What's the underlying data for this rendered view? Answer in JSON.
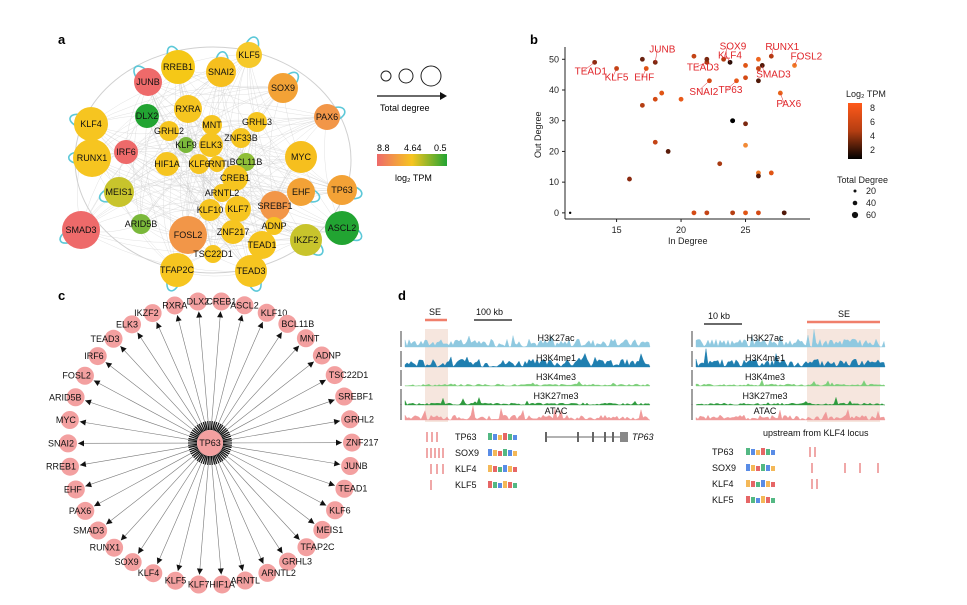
{
  "panels": {
    "a": "a",
    "b": "b",
    "c": "c",
    "d": "d"
  },
  "panel_a": {
    "legend_size_label": "Total degree",
    "legend_color_ticks": [
      "8.8",
      "4.64",
      "0.5"
    ],
    "legend_color_title": "log₂ TPM",
    "colors": {
      "high": "#ee6a6a",
      "mid": "#f6c520",
      "low": "#22a432"
    },
    "nodes": [
      {
        "name": "RREB1",
        "color": "#f5c817"
      },
      {
        "name": "SNAI2",
        "color": "#f6bf1e"
      },
      {
        "name": "KLF5",
        "color": "#f6c92a"
      },
      {
        "name": "JUNB",
        "color": "#ee6a6a"
      },
      {
        "name": "SOX9",
        "color": "#f3a236"
      },
      {
        "name": "DLX2",
        "color": "#22a432"
      },
      {
        "name": "GRHL3",
        "color": "#f6c520"
      },
      {
        "name": "MNT",
        "color": "#f6c520"
      },
      {
        "name": "RXRA",
        "color": "#f6c520"
      },
      {
        "name": "ZNF33B",
        "color": "#f6c520"
      },
      {
        "name": "PAX6",
        "color": "#f29648"
      },
      {
        "name": "KLF4",
        "color": "#f6c520"
      },
      {
        "name": "GRHL2",
        "color": "#f6c520"
      },
      {
        "name": "ELK3",
        "color": "#f6c520"
      },
      {
        "name": "BCL11B",
        "color": "#8fbf38"
      },
      {
        "name": "MYC",
        "color": "#f6bf1e"
      },
      {
        "name": "KLF9",
        "color": "#7ab83a"
      },
      {
        "name": "ARNTL",
        "color": "#f6c520"
      },
      {
        "name": "RUNX1",
        "color": "#f6c520"
      },
      {
        "name": "IRF6",
        "color": "#ee6a6a"
      },
      {
        "name": "CREB1",
        "color": "#f6c520"
      },
      {
        "name": "EHF",
        "color": "#f3a236"
      },
      {
        "name": "TP63",
        "color": "#f3a236"
      },
      {
        "name": "HIF1A",
        "color": "#f6c520"
      },
      {
        "name": "KLF6",
        "color": "#f6c520"
      },
      {
        "name": "ARNTL2",
        "color": "#f6c520"
      },
      {
        "name": "MEIS1",
        "color": "#c8c42c"
      },
      {
        "name": "KLF10",
        "color": "#f6c520"
      },
      {
        "name": "KLF7",
        "color": "#f6c520"
      },
      {
        "name": "SREBF1",
        "color": "#f29648"
      },
      {
        "name": "SMAD3",
        "color": "#ee6a6a"
      },
      {
        "name": "ARID5B",
        "color": "#7ab83a"
      },
      {
        "name": "FOSL2",
        "color": "#f29648"
      },
      {
        "name": "ZNF217",
        "color": "#f6c520"
      },
      {
        "name": "ADNP",
        "color": "#f6c520"
      },
      {
        "name": "ASCL2",
        "color": "#22a432"
      },
      {
        "name": "IKZF2",
        "color": "#c8c42c"
      },
      {
        "name": "TEAD1",
        "color": "#f6c520"
      },
      {
        "name": "TSC22D1",
        "color": "#f6c520"
      },
      {
        "name": "TFAP2C",
        "color": "#f6c520"
      },
      {
        "name": "TEAD3",
        "color": "#f6c520"
      }
    ]
  },
  "chart_data": {
    "type": "scatter",
    "xlabel": "In Degree",
    "ylabel": "Out Degree",
    "xticks": [
      15,
      20,
      25
    ],
    "yticks": [
      0,
      10,
      20,
      30,
      40,
      50
    ],
    "xlim": [
      11,
      30
    ],
    "ylim": [
      -2,
      54
    ],
    "color_legend_title": "Log₂ TPM",
    "color_legend_ticks": [
      8,
      6,
      4,
      2
    ],
    "size_legend_title": "Total Degree",
    "size_legend_ticks": [
      20,
      40,
      60
    ],
    "points": [
      {
        "x": 13.3,
        "y": 49,
        "c": "#8a2a10",
        "label": "TEAD1"
      },
      {
        "x": 15.0,
        "y": 47,
        "c": "#c44416",
        "label": "KLF5"
      },
      {
        "x": 18.0,
        "y": 49,
        "c": "#7c2810",
        "label": "JUNB"
      },
      {
        "x": 17.3,
        "y": 47,
        "c": "#e05515",
        "label": "EHF"
      },
      {
        "x": 22.0,
        "y": 49,
        "c": "#a83a12",
        "label": "TEAD3"
      },
      {
        "x": 22.2,
        "y": 43,
        "c": "#d44a14",
        "label": "SNAI2"
      },
      {
        "x": 23.3,
        "y": 50,
        "c": "#b43e12",
        "label": "SOX9"
      },
      {
        "x": 23.8,
        "y": 49,
        "c": "#2a0c06",
        "label": "KLF4"
      },
      {
        "x": 24.3,
        "y": 43,
        "c": "#e85a1a",
        "label": "TP63"
      },
      {
        "x": 26.3,
        "y": 48,
        "c": "#501808",
        "label": "SMAD3"
      },
      {
        "x": 27.0,
        "y": 51,
        "c": "#b23c12",
        "label": "RUNX1"
      },
      {
        "x": 28.8,
        "y": 48,
        "c": "#f07a26",
        "label": "FOSL2"
      },
      {
        "x": 27.7,
        "y": 39,
        "c": "#e8631a",
        "label": "PAX6"
      },
      {
        "x": 17.0,
        "y": 50,
        "c": "#6a2210",
        "label": ""
      },
      {
        "x": 18.0,
        "y": 37,
        "c": "#d44a14",
        "label": ""
      },
      {
        "x": 21.0,
        "y": 51,
        "c": "#c44416",
        "label": ""
      },
      {
        "x": 22.0,
        "y": 50,
        "c": "#7c2810",
        "label": ""
      },
      {
        "x": 25.0,
        "y": 48,
        "c": "#e05515",
        "label": ""
      },
      {
        "x": 26.0,
        "y": 50,
        "c": "#ee6620",
        "label": ""
      },
      {
        "x": 26.0,
        "y": 47,
        "c": "#c44416",
        "label": ""
      },
      {
        "x": 26.0,
        "y": 43,
        "c": "#501808",
        "label": ""
      },
      {
        "x": 25.0,
        "y": 44,
        "c": "#d44a14",
        "label": ""
      },
      {
        "x": 17.0,
        "y": 35,
        "c": "#b43e12",
        "label": ""
      },
      {
        "x": 18.5,
        "y": 39,
        "c": "#e05515",
        "label": ""
      },
      {
        "x": 20.0,
        "y": 37,
        "c": "#e85a1a",
        "label": ""
      },
      {
        "x": 18.0,
        "y": 23,
        "c": "#c44416",
        "label": ""
      },
      {
        "x": 19.0,
        "y": 20,
        "c": "#5a1c0a",
        "label": ""
      },
      {
        "x": 24.0,
        "y": 30,
        "c": "#000000",
        "label": ""
      },
      {
        "x": 24.0,
        "y": 30,
        "c": "#000000",
        "label": ""
      },
      {
        "x": 25.0,
        "y": 29,
        "c": "#7c2810",
        "label": ""
      },
      {
        "x": 25.0,
        "y": 22,
        "c": "#f28a36",
        "label": ""
      },
      {
        "x": 23.0,
        "y": 16,
        "c": "#a83a12",
        "label": ""
      },
      {
        "x": 26.0,
        "y": 13,
        "c": "#f07a26",
        "label": ""
      },
      {
        "x": 27.0,
        "y": 13,
        "c": "#e05515",
        "label": ""
      },
      {
        "x": 26.0,
        "y": 12,
        "c": "#501808",
        "label": ""
      },
      {
        "x": 16.0,
        "y": 11,
        "c": "#8a2a10",
        "label": ""
      },
      {
        "x": 11.4,
        "y": 0,
        "c": "#000000",
        "label": ""
      },
      {
        "x": 21.0,
        "y": 0,
        "c": "#d44a14",
        "label": ""
      },
      {
        "x": 22.0,
        "y": 0,
        "c": "#c44416",
        "label": ""
      },
      {
        "x": 24.0,
        "y": 0,
        "c": "#b43e12",
        "label": ""
      },
      {
        "x": 25.0,
        "y": 0,
        "c": "#e05515",
        "label": ""
      },
      {
        "x": 26.0,
        "y": 0,
        "c": "#d44a14",
        "label": ""
      },
      {
        "x": 28.0,
        "y": 0,
        "c": "#501808",
        "label": ""
      }
    ]
  },
  "panel_c": {
    "center": "TP63",
    "targets": [
      "CREB1",
      "ASCL2",
      "KLF10",
      "BCL11B",
      "MNT",
      "ADNP",
      "TSC22D1",
      "SREBF1",
      "GRHL2",
      "ZNF217",
      "JUNB",
      "TEAD1",
      "KLF6",
      "MEIS1",
      "TFAP2C",
      "GRHL3",
      "ARNTL2",
      "ARNTL",
      "HIF1A",
      "KLF7",
      "KLF5",
      "KLF4",
      "SOX9",
      "RUNX1",
      "SMAD3",
      "PAX6",
      "EHF",
      "RREB1",
      "SNAI2",
      "MYC",
      "ARID5B",
      "FOSL2",
      "IRF6",
      "TEAD3",
      "ELK3",
      "IKZF2",
      "RXRA",
      "DLX2"
    ],
    "node_color": "#f3a0a0"
  },
  "panel_d": {
    "left": {
      "se_label": "SE",
      "scale_label": "100 kb",
      "tracks": [
        "H3K27ac",
        "H3K4me1",
        "H3K4me3",
        "H3K27me3",
        "ATAC"
      ],
      "motifs": [
        "TP63",
        "SOX9",
        "KLF4",
        "KLF5"
      ],
      "gene_label": "TP63"
    },
    "right": {
      "se_label": "SE",
      "scale_label": "10 kb",
      "tracks": [
        "H3K27ac",
        "H3K4me1",
        "H3K4me3",
        "H3K27me3",
        "ATAC"
      ],
      "upstream_label": "upstream from KLF4 locus",
      "motifs": [
        "TP63",
        "SOX9",
        "KLF4",
        "KLF5"
      ]
    },
    "track_colors": [
      "#8fc9e0",
      "#1f7fb0",
      "#7ccf7a",
      "#2e9a3e",
      "#f09a9a"
    ]
  }
}
